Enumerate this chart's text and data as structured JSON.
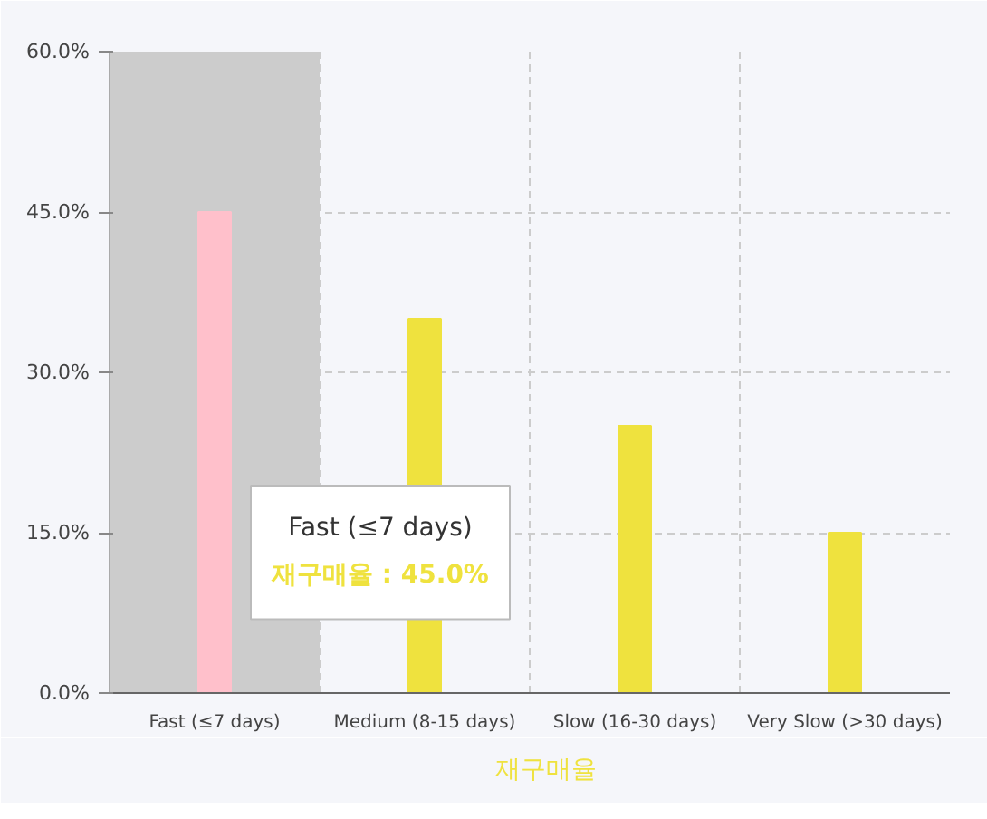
{
  "chart_data": {
    "type": "bar",
    "categories": [
      "Fast (≤7 days)",
      "Medium (8-15 days)",
      "Slow (16-30 days)",
      "Very Slow (>30 days)"
    ],
    "series": [
      {
        "name": "재구매율",
        "color": "#efe23e",
        "colors": [
          "#ffc0cb",
          "#efe23e",
          "#efe23e",
          "#efe23e"
        ],
        "values": [
          45,
          35,
          25,
          15
        ]
      }
    ],
    "ylim": [
      0,
      60
    ],
    "yticks": [
      {
        "value": 0,
        "label": "0.0%"
      },
      {
        "value": 15,
        "label": "15.0%"
      },
      {
        "value": 30,
        "label": "30.0%"
      },
      {
        "value": 45,
        "label": "45.0%"
      },
      {
        "value": 60,
        "label": "60.0%"
      }
    ],
    "bands": [
      {
        "axis": "x",
        "from": "Fast (≤7 days)",
        "to": "Fast (≤7 days)",
        "color": "#cccccc"
      }
    ],
    "annotations": [
      "Fast (≤7 days)",
      "재구매율 : 45.0%"
    ],
    "grid": true,
    "legend": "bottom"
  }
}
